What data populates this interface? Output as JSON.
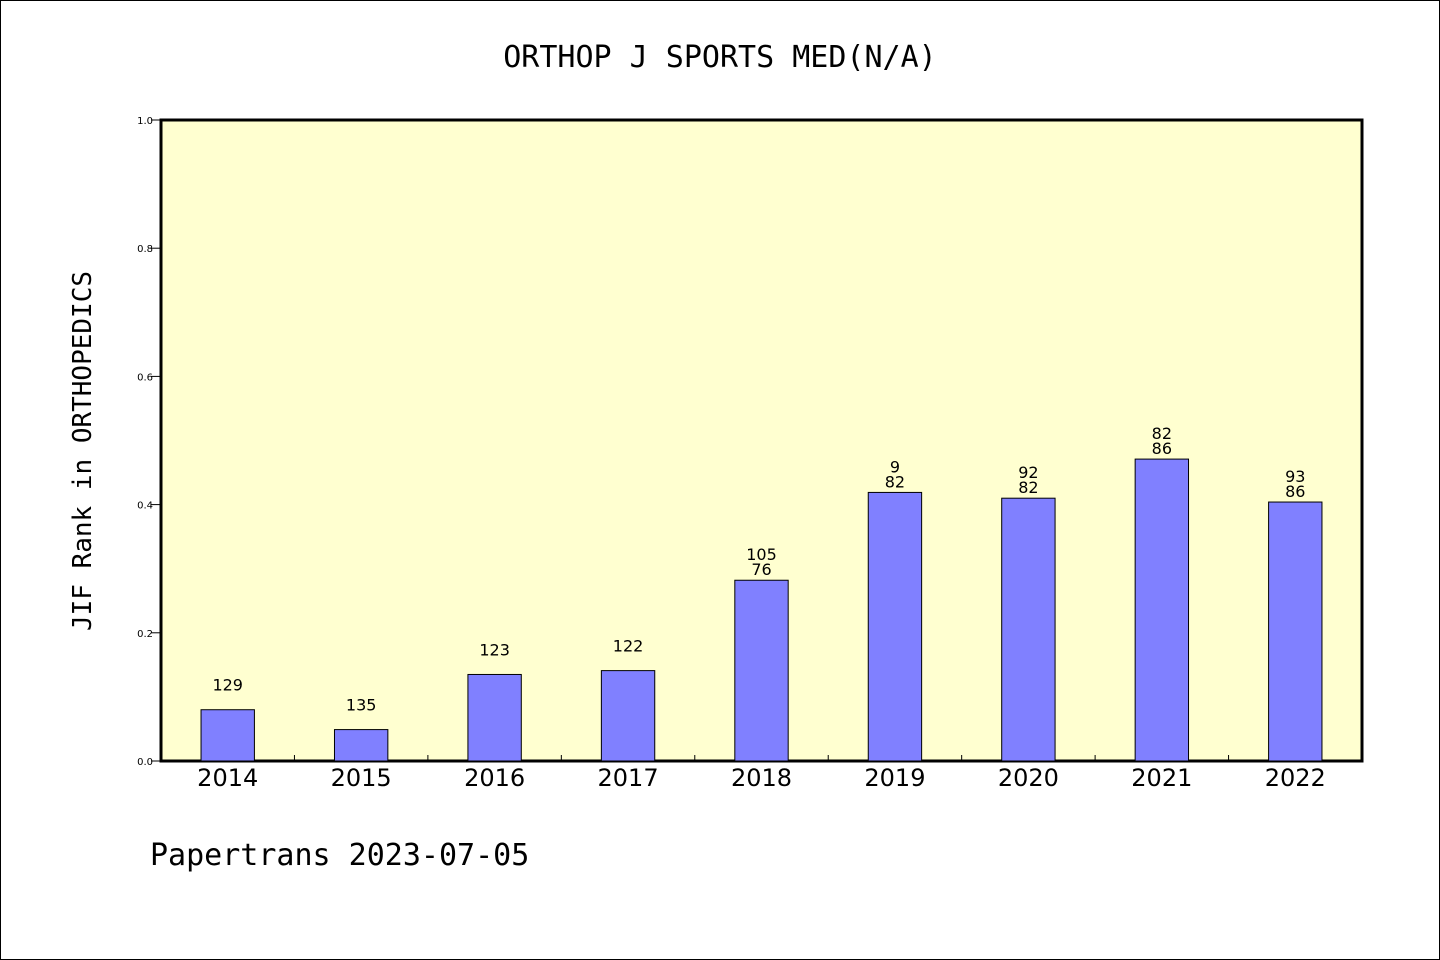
{
  "chart_data": {
    "type": "bar",
    "title": "ORTHOP J SPORTS MED(N/A)",
    "ylabel": "JIF Rank in ORTHOPEDICS",
    "xlabel": "",
    "ylim": [
      0,
      1.0
    ],
    "yticks": [
      "0.0",
      "0.2",
      "0.4",
      "0.6",
      "0.8",
      "1.0"
    ],
    "ytick_values": [
      0.0,
      0.2,
      0.4,
      0.6,
      0.8,
      1.0
    ],
    "categories": [
      "2014",
      "2015",
      "2016",
      "2017",
      "2018",
      "2019",
      "2020",
      "2021",
      "2022"
    ],
    "values": [
      0.08,
      0.049,
      0.135,
      0.141,
      0.282,
      0.419,
      0.41,
      0.471,
      0.404
    ],
    "data_labels": [
      [
        "129"
      ],
      [
        "135"
      ],
      [
        "123"
      ],
      [
        "122"
      ],
      [
        "105",
        "76"
      ],
      [
        "9",
        "82"
      ],
      [
        "92",
        "82"
      ],
      [
        "82",
        "86"
      ],
      [
        "93",
        "86"
      ]
    ],
    "grid": false,
    "legend": "none"
  },
  "colors": {
    "plot_background": "#ffffd0",
    "bar_fill": "#8080ff",
    "bar_stroke": "#000000",
    "axis": "#000000"
  },
  "footer": {
    "text": "Papertrans 2023-07-05"
  }
}
